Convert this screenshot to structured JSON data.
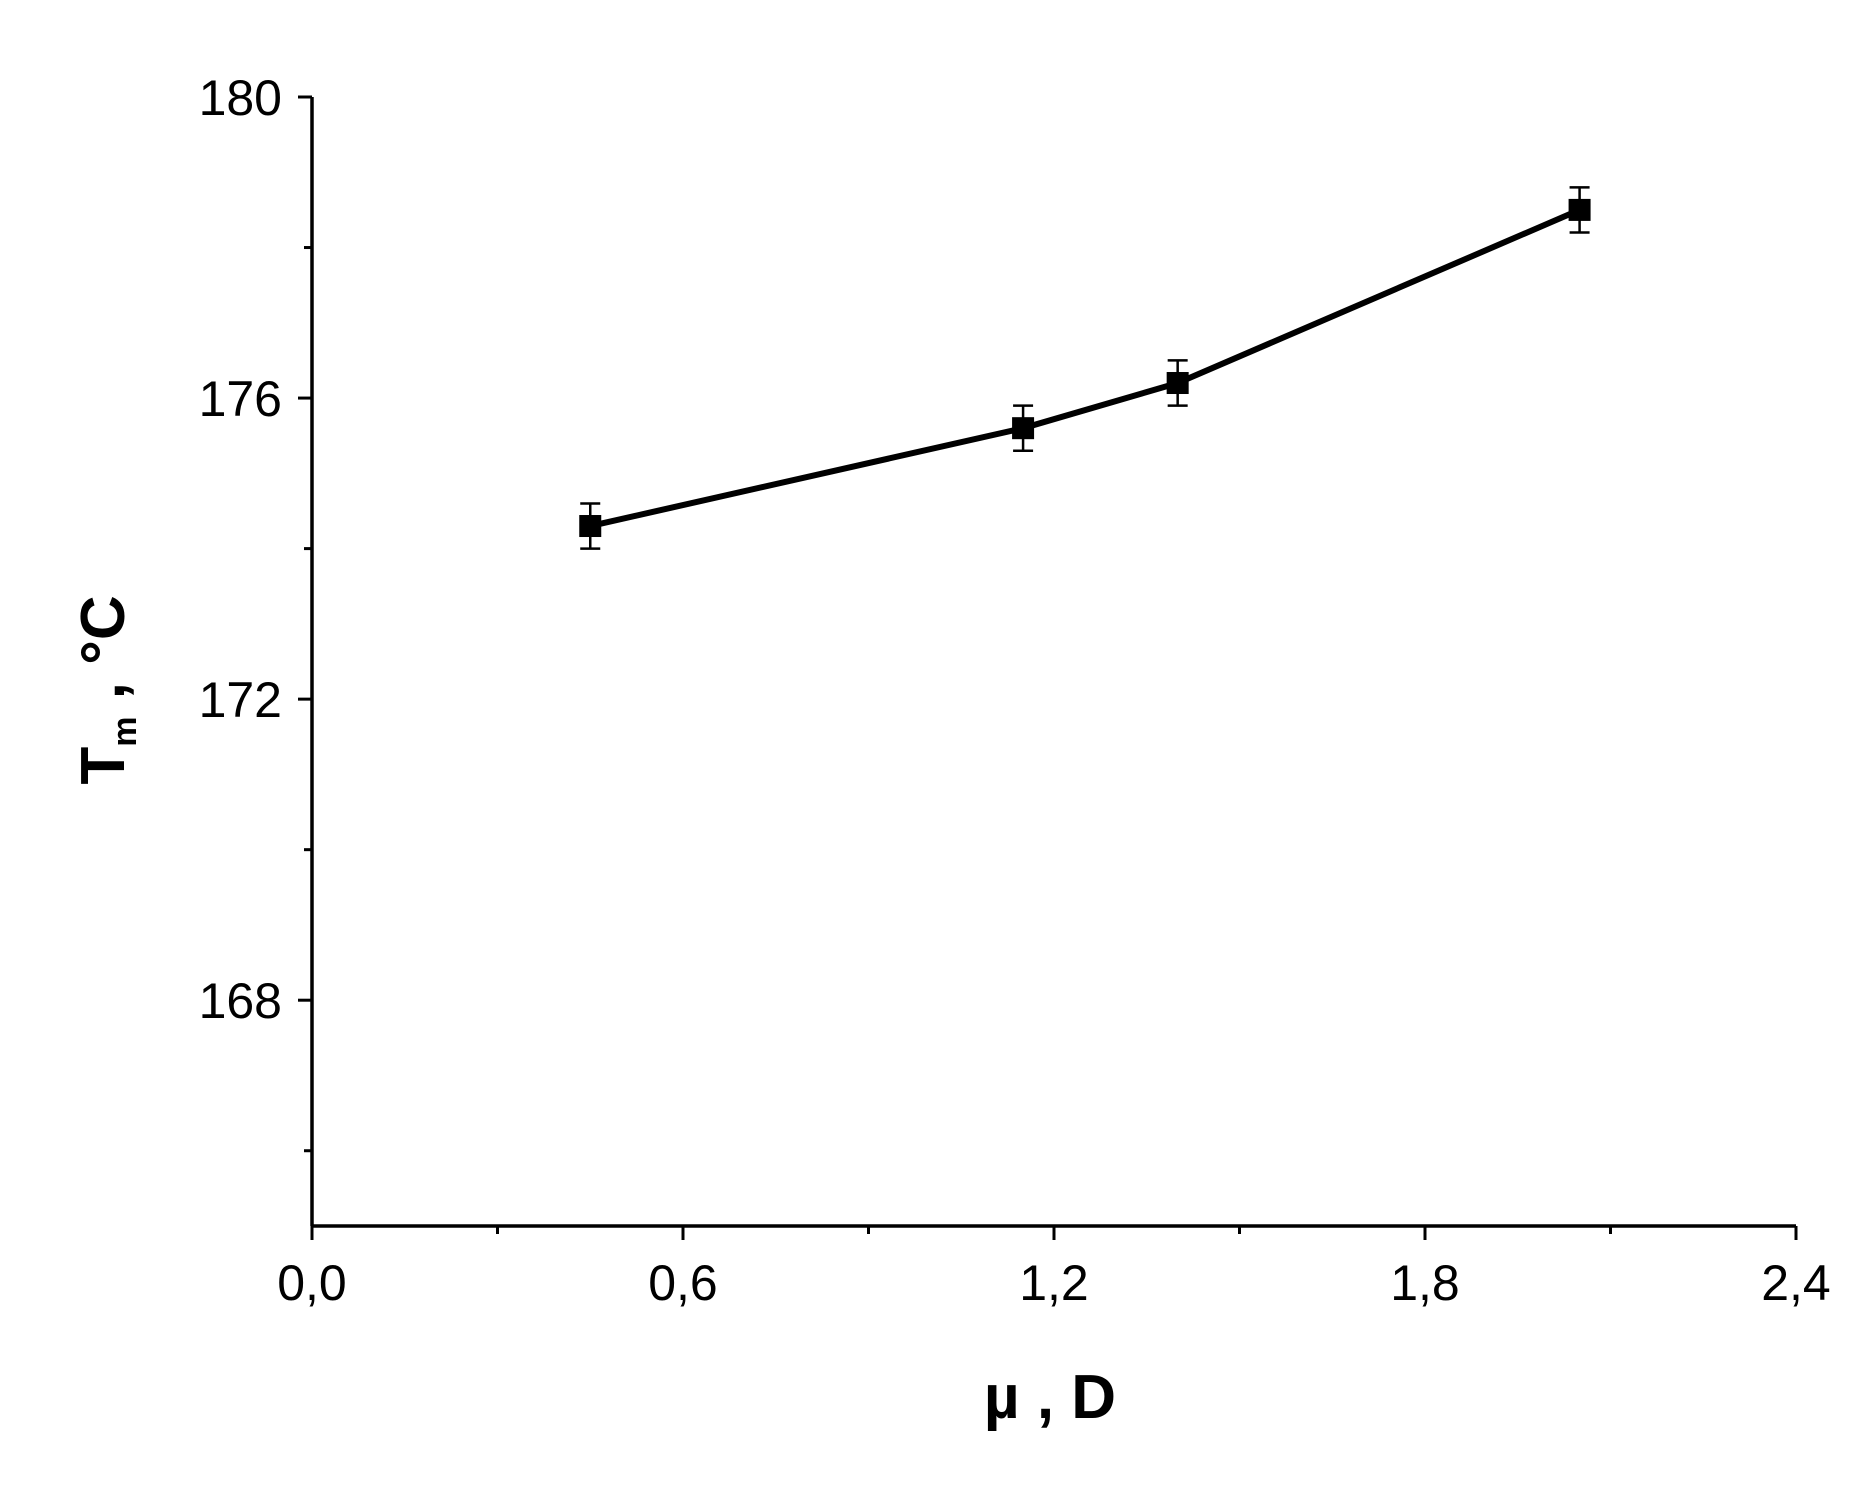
{
  "chart_data": {
    "type": "line",
    "title": "",
    "xlabel": "µ , D",
    "ylabel": {
      "main": "T",
      "subscript": "m",
      "unit": " , °C"
    },
    "xlim": [
      0.0,
      2.4
    ],
    "ylim": [
      165,
      180
    ],
    "x_ticks": [
      0.0,
      0.6,
      1.2,
      1.8,
      2.4
    ],
    "x_tick_labels": [
      "0,0",
      "0,6",
      "1,2",
      "1,8",
      "2,4"
    ],
    "x_minor_ticks": [
      0.3,
      0.9,
      1.5,
      2.1
    ],
    "y_ticks": [
      168,
      172,
      176,
      180
    ],
    "y_tick_labels": [
      "168",
      "172",
      "176",
      "180"
    ],
    "y_minor_ticks": [
      166,
      170,
      174,
      178
    ],
    "grid": false,
    "legend": "none",
    "series": [
      {
        "marker": "square",
        "color": "#000000",
        "x": [
          0.45,
          1.15,
          1.4,
          2.05
        ],
        "y": [
          174.3,
          175.6,
          176.2,
          178.5
        ],
        "error": [
          0.3,
          0.3,
          0.3,
          0.3
        ]
      }
    ]
  }
}
